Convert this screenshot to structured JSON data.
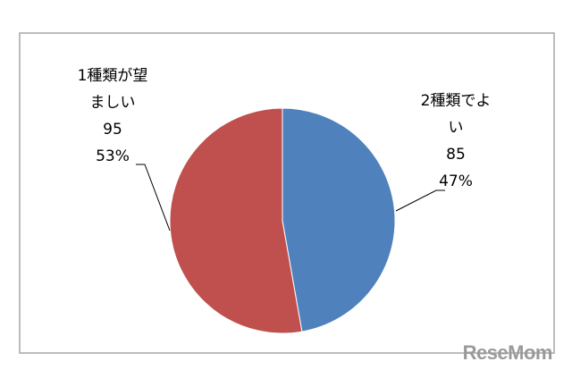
{
  "chart_data": {
    "type": "pie",
    "categories": [
      "2種類でよい",
      "1種類が望ましい"
    ],
    "values": [
      85,
      95
    ],
    "percentages": [
      47,
      53
    ],
    "percent_labels": [
      "47%",
      "53%"
    ],
    "colors": [
      "#4f81bd",
      "#c0504d"
    ]
  },
  "watermark": "ReseMom"
}
